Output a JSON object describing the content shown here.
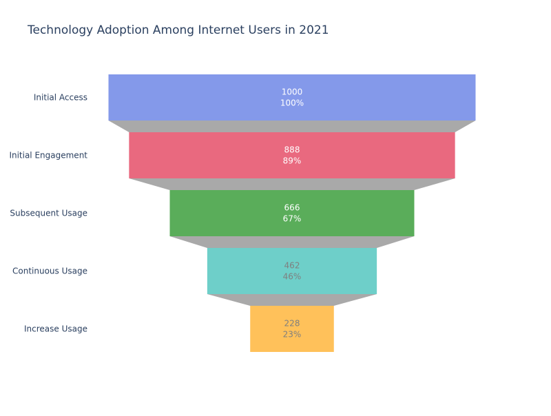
{
  "chart_data": {
    "type": "funnel",
    "title": "Technology Adoption Among Internet Users in 2021",
    "stages": [
      "Initial Access",
      "Initial Engagement",
      "Subsequent Usage",
      "Continuous Usage",
      "Increase Usage"
    ],
    "values": [
      1000,
      888,
      666,
      462,
      228
    ],
    "percent_labels": [
      "100%",
      "89%",
      "67%",
      "46%",
      "23%"
    ],
    "colors": [
      "#8499EA",
      "#E9697F",
      "#5AAD5A",
      "#6ECFC9",
      "#FFC15A"
    ],
    "connector_color": "#a9a9a9",
    "label_text_colors": [
      "#ffffff",
      "#ffffff",
      "#ffffff",
      "#7f7f7f",
      "#7f7f7f"
    ]
  }
}
